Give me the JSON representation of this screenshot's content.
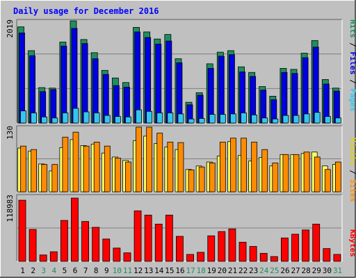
{
  "title": "Daily usage for December 2016",
  "chart_data": [
    {
      "type": "bar",
      "panel": "hits-files-pages",
      "ymax_label": "2019",
      "ylim": [
        0,
        2019
      ],
      "side_label": {
        "pages": "Pages",
        "files": "Files",
        "hits": "Hits",
        "sep": " / "
      },
      "categories": [
        "1",
        "2",
        "3",
        "4",
        "5",
        "6",
        "7",
        "8",
        "9",
        "10",
        "11",
        "12",
        "13",
        "14",
        "15",
        "16",
        "17",
        "18",
        "19",
        "20",
        "21",
        "22",
        "23",
        "24",
        "25",
        "26",
        "27",
        "28",
        "29",
        "30",
        "31"
      ],
      "weekend_days": [
        "3",
        "4",
        "10",
        "11",
        "17",
        "18",
        "24",
        "25",
        "31"
      ],
      "series": [
        {
          "key": "hits",
          "values": [
            1900,
            1430,
            700,
            690,
            1600,
            2019,
            1650,
            1390,
            1040,
            890,
            800,
            1890,
            1800,
            1660,
            1750,
            1270,
            410,
            600,
            1170,
            1400,
            1430,
            1110,
            1000,
            720,
            530,
            1080,
            1060,
            1380,
            1630,
            860,
            690
          ]
        },
        {
          "key": "files",
          "values": [
            1780,
            1330,
            620,
            660,
            1520,
            1870,
            1570,
            1270,
            960,
            740,
            710,
            1800,
            1690,
            1560,
            1620,
            1190,
            360,
            550,
            1080,
            1320,
            1350,
            1010,
            920,
            650,
            460,
            1000,
            980,
            1290,
            1500,
            770,
            630
          ]
        },
        {
          "key": "pages",
          "values": [
            240,
            200,
            120,
            100,
            200,
            290,
            220,
            200,
            150,
            130,
            120,
            260,
            230,
            200,
            200,
            180,
            80,
            90,
            170,
            170,
            180,
            200,
            160,
            100,
            80,
            150,
            150,
            180,
            210,
            130,
            100
          ]
        }
      ],
      "colors": {
        "hits": "#1f8f5f",
        "files": "#0000e0",
        "pages": "#34c6ef"
      }
    },
    {
      "type": "bar",
      "panel": "visits-sites",
      "ymax_label": "130",
      "ylim": [
        0,
        130
      ],
      "side_label": {
        "sites": "Sites",
        "visits": "Visits",
        "sep": " / "
      },
      "categories": [
        "1",
        "2",
        "3",
        "4",
        "5",
        "6",
        "7",
        "8",
        "9",
        "10",
        "11",
        "12",
        "13",
        "14",
        "15",
        "16",
        "17",
        "18",
        "19",
        "20",
        "21",
        "22",
        "23",
        "24",
        "25",
        "26",
        "27",
        "28",
        "29",
        "30",
        "31"
      ],
      "series": [
        {
          "key": "visits",
          "values": [
            88,
            82,
            56,
            42,
            89,
            105,
            93,
            96,
            78,
            70,
            63,
            103,
            112,
            97,
            90,
            85,
            45,
            52,
            60,
            72,
            101,
            73,
            62,
            69,
            52,
            75,
            75,
            77,
            80,
            52,
            55
          ]
        },
        {
          "key": "sites",
          "values": [
            92,
            85,
            55,
            55,
            110,
            120,
            92,
            100,
            92,
            68,
            60,
            130,
            130,
            118,
            100,
            99,
            44,
            50,
            58,
            100,
            108,
            108,
            100,
            85,
            58,
            75,
            75,
            80,
            70,
            45,
            60
          ]
        }
      ],
      "colors": {
        "visits": "#ffff60",
        "sites": "#ff8c00"
      }
    },
    {
      "type": "bar",
      "panel": "kbytes",
      "ymax_label": "118983",
      "ylim": [
        0,
        118983
      ],
      "side_label": {
        "kbytes": "KBytes"
      },
      "categories": [
        "1",
        "2",
        "3",
        "4",
        "5",
        "6",
        "7",
        "8",
        "9",
        "10",
        "11",
        "12",
        "13",
        "14",
        "15",
        "16",
        "17",
        "18",
        "19",
        "20",
        "21",
        "22",
        "23",
        "24",
        "25",
        "26",
        "27",
        "28",
        "29",
        "30",
        "31"
      ],
      "series": [
        {
          "key": "kbytes",
          "values": [
            115000,
            60000,
            12000,
            18000,
            77000,
            118983,
            75000,
            64000,
            42000,
            25000,
            16000,
            95000,
            87000,
            70000,
            87000,
            47000,
            13000,
            17000,
            48000,
            56000,
            61000,
            36000,
            28000,
            15000,
            9000,
            44000,
            51000,
            59000,
            70000,
            24000,
            13000
          ]
        }
      ],
      "colors": {
        "kbytes": "#ff0000"
      }
    }
  ],
  "colors": {
    "bg": "#c0c0c0",
    "weekday": "#000000",
    "weekend": "#1f8f5f",
    "title": "#0000ff"
  }
}
